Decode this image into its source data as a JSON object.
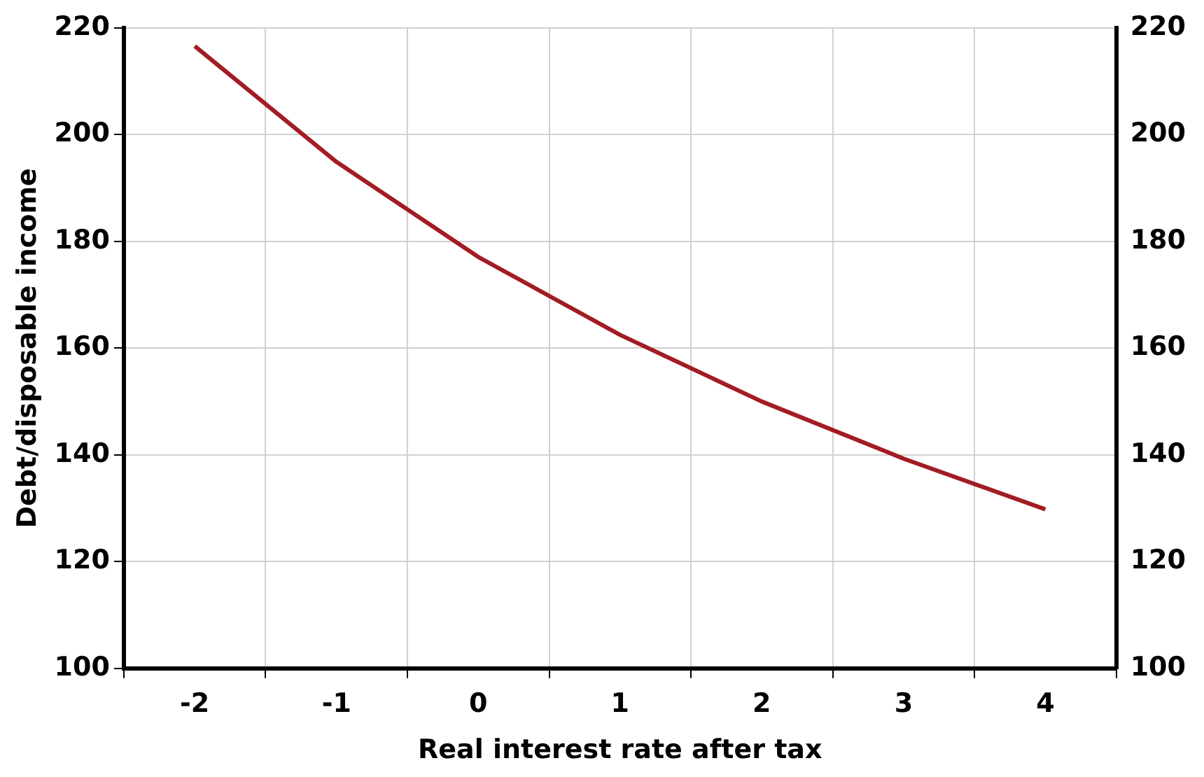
{
  "chart_data": {
    "type": "line",
    "xlabel": "Real interest rate after tax",
    "ylabel": "Debt/disposable income",
    "categories": [
      "-2",
      "-1",
      "0",
      "1",
      "2",
      "3",
      "4"
    ],
    "series": [
      {
        "color": "#a21c24",
        "values": [
          216.6,
          194.9,
          177.1,
          162.5,
          150.0,
          139.3,
          129.8
        ]
      }
    ],
    "ylim": [
      100,
      220
    ],
    "yticks": [
      100,
      120,
      140,
      160,
      180,
      200,
      220
    ],
    "y2lim": [
      100,
      220
    ],
    "y2ticks": [
      100,
      120,
      140,
      160,
      180,
      200,
      220
    ],
    "grid": true,
    "legend": false,
    "marker": "none",
    "line_style": "solid"
  }
}
